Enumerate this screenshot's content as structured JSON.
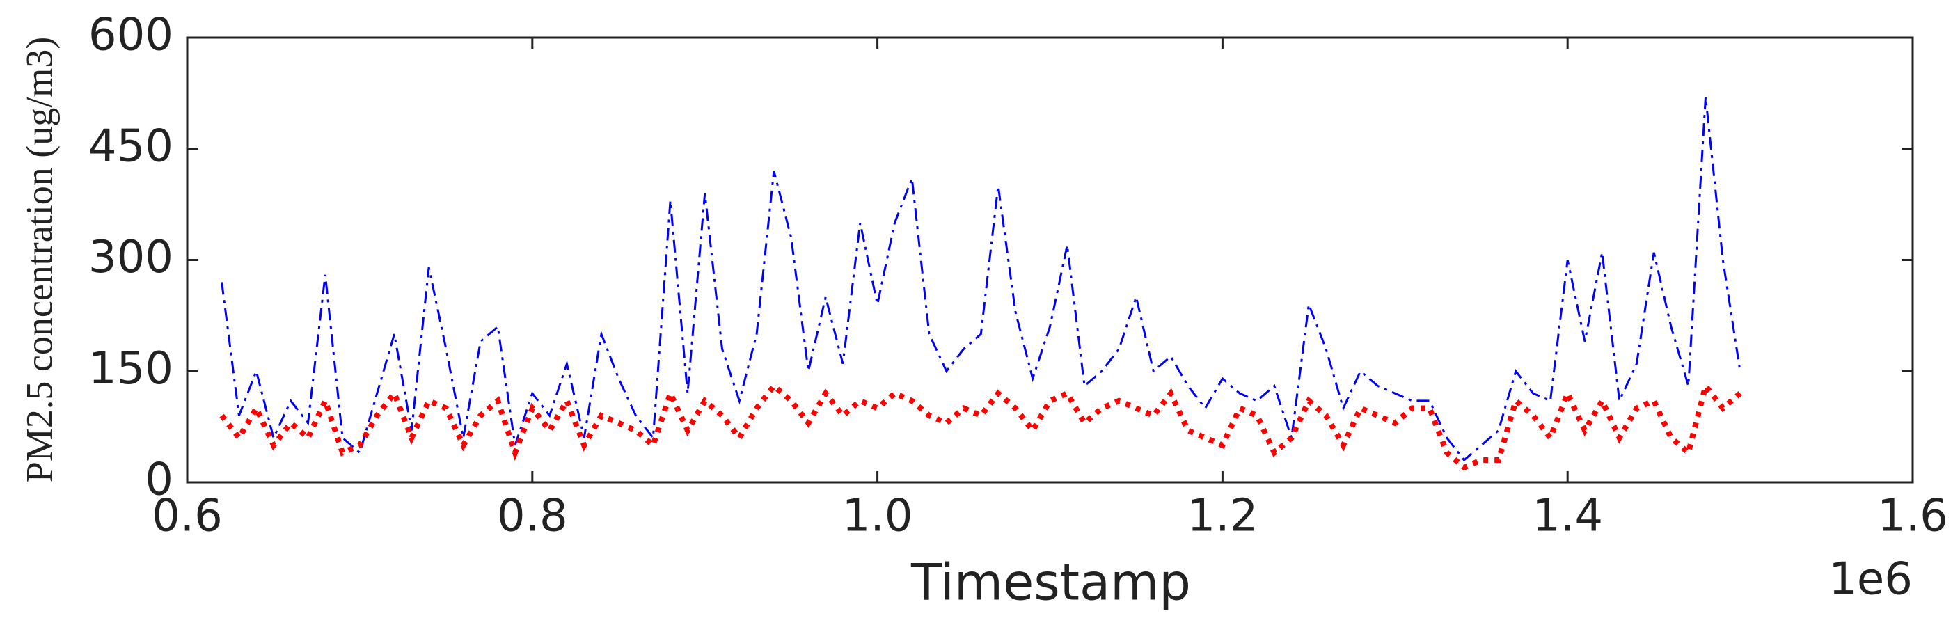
{
  "chart_data": {
    "type": "line",
    "x_label": "Timestamp",
    "y_label": "PM2.5 concentration (ug/m3)",
    "x_offset_label": "1e6",
    "x": [
      0.62,
      0.63,
      0.64,
      0.65,
      0.66,
      0.67,
      0.68,
      0.69,
      0.7,
      0.71,
      0.72,
      0.73,
      0.74,
      0.75,
      0.76,
      0.77,
      0.78,
      0.79,
      0.8,
      0.81,
      0.82,
      0.83,
      0.84,
      0.85,
      0.86,
      0.87,
      0.88,
      0.89,
      0.9,
      0.91,
      0.92,
      0.93,
      0.94,
      0.95,
      0.96,
      0.97,
      0.98,
      0.99,
      1.0,
      1.01,
      1.02,
      1.03,
      1.04,
      1.05,
      1.06,
      1.07,
      1.08,
      1.09,
      1.1,
      1.11,
      1.12,
      1.13,
      1.14,
      1.15,
      1.16,
      1.17,
      1.18,
      1.19,
      1.2,
      1.21,
      1.22,
      1.23,
      1.24,
      1.25,
      1.26,
      1.27,
      1.28,
      1.29,
      1.3,
      1.31,
      1.32,
      1.33,
      1.34,
      1.35,
      1.36,
      1.37,
      1.38,
      1.39,
      1.4,
      1.41,
      1.42,
      1.43,
      1.44,
      1.45,
      1.46,
      1.47,
      1.48,
      1.49,
      1.5
    ],
    "series": [
      {
        "color": "#0000ff",
        "style": "dashdot",
        "values": [
          270,
          90,
          150,
          60,
          110,
          80,
          280,
          60,
          40,
          120,
          200,
          70,
          290,
          180,
          60,
          190,
          210,
          50,
          120,
          90,
          160,
          60,
          200,
          140,
          90,
          60,
          380,
          120,
          390,
          180,
          110,
          200,
          420,
          330,
          150,
          250,
          160,
          350,
          240,
          350,
          410,
          200,
          150,
          180,
          200,
          400,
          230,
          140,
          210,
          320,
          130,
          150,
          180,
          250,
          150,
          170,
          130,
          100,
          140,
          120,
          110,
          130,
          60,
          240,
          180,
          100,
          150,
          130,
          120,
          110,
          110,
          60,
          30,
          50,
          70,
          150,
          120,
          110,
          300,
          190,
          310,
          110,
          160,
          310,
          210,
          130,
          520,
          300,
          150
        ]
      },
      {
        "color": "#ff0000",
        "style": "dotted",
        "values": [
          90,
          60,
          100,
          50,
          80,
          60,
          110,
          40,
          50,
          90,
          120,
          60,
          110,
          100,
          50,
          90,
          110,
          40,
          100,
          70,
          110,
          50,
          90,
          80,
          70,
          50,
          120,
          70,
          110,
          90,
          60,
          100,
          130,
          110,
          80,
          120,
          90,
          110,
          100,
          120,
          110,
          90,
          80,
          100,
          90,
          120,
          100,
          70,
          110,
          120,
          80,
          100,
          110,
          100,
          90,
          120,
          70,
          60,
          50,
          100,
          90,
          40,
          60,
          110,
          90,
          50,
          100,
          90,
          80,
          100,
          100,
          40,
          20,
          30,
          30,
          110,
          90,
          60,
          120,
          70,
          110,
          60,
          100,
          110,
          60,
          40,
          130,
          100,
          120
        ]
      }
    ],
    "xlim": [
      0.6,
      1.6
    ],
    "xticks": [
      0.6,
      0.8,
      {
        "value": 1.0,
        "label": "1.0"
      },
      1.2,
      1.4,
      1.6
    ],
    "ylim": [
      0,
      600
    ],
    "yticks": [
      0,
      150,
      300,
      450,
      600
    ]
  }
}
